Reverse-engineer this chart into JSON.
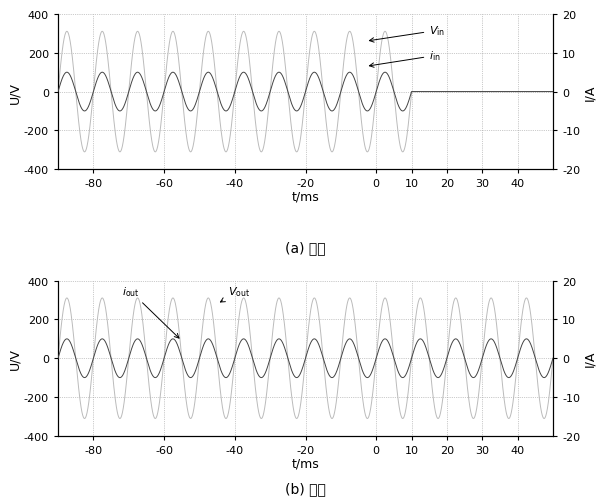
{
  "t_start": -90,
  "t_end": 50,
  "freq_hz": 100,
  "V_amplitude": 311,
  "I_in_amplitude": 5.0,
  "I_out_amplitude": 5.0,
  "cutoff_time": 10,
  "ylim_U": [
    -400,
    400
  ],
  "ylim_I": [
    -20,
    20
  ],
  "yticks_U": [
    -400,
    -200,
    0,
    200,
    400
  ],
  "yticks_I": [
    -20,
    -10,
    0,
    10,
    20
  ],
  "xticks": [
    -80,
    -60,
    -40,
    -20,
    0,
    10,
    20,
    30,
    40
  ],
  "xlim": [
    -90,
    50
  ],
  "xlabel": "t/ms",
  "ylabel_U": "U/V",
  "ylabel_I": "I/A",
  "label_Vin": "$V_{\\mathrm{in}}$",
  "label_iin": "$i_{\\mathrm{in}}$",
  "label_Vout": "$V_{\\mathrm{out}}$",
  "label_iout": "$i_{\\mathrm{out}}$",
  "caption_a": "(a) 输入",
  "caption_b": "(b) 输出",
  "color_V": "#bbbbbb",
  "color_I_in": "#444444",
  "color_I_out": "#333333",
  "color_V_out": "#bbbbbb",
  "grid_color": "#999999",
  "grid_style": ":",
  "background_color": "#ffffff",
  "linewidth_V": 0.7,
  "linewidth_I": 0.7,
  "dt": 0.05
}
